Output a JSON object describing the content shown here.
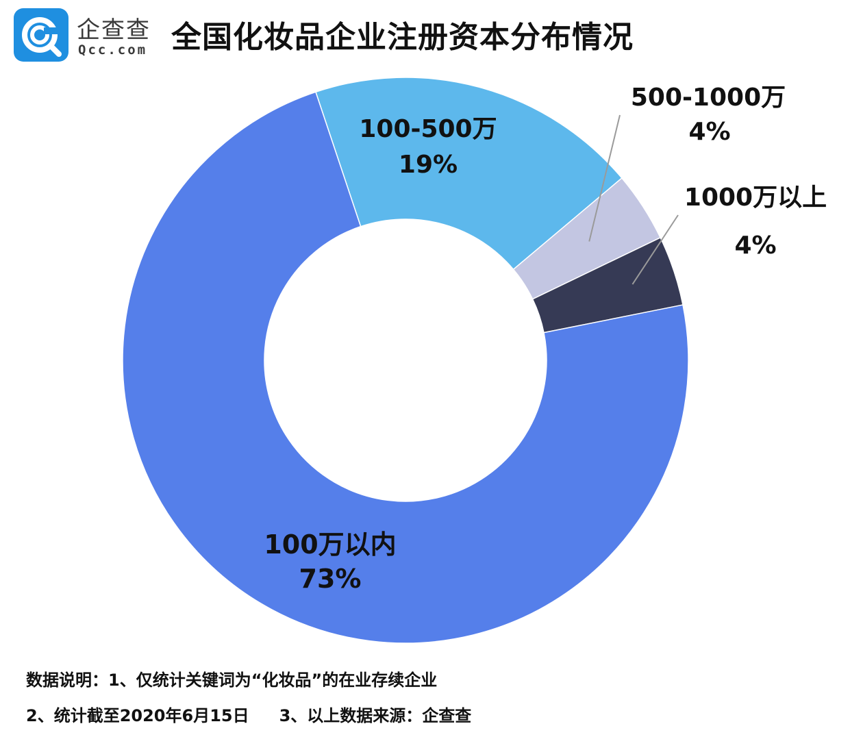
{
  "brand": {
    "name": "企查查",
    "domain": "Qcc.com",
    "color": "#1f8fe0"
  },
  "title": "全国化妆品企业注册资本分布情况",
  "chart_data": {
    "type": "pie",
    "donut": true,
    "title": "全国化妆品企业注册资本分布情况",
    "series": [
      {
        "label": "100万以内",
        "value": 73,
        "pct_text": "73%",
        "color": "#557fea"
      },
      {
        "label": "100-500万",
        "value": 19,
        "pct_text": "19%",
        "color": "#5db8ec"
      },
      {
        "label": "500-1000万",
        "value": 4,
        "pct_text": "4%",
        "color": "#c3c6e2"
      },
      {
        "label": "1000万以上",
        "value": 4,
        "pct_text": "4%",
        "color": "#363a55"
      }
    ]
  },
  "footnotes": {
    "line1": "数据说明：1、仅统计关键词为“化妆品”的在业存续企业",
    "line2_a": "2、统计截至2020年6月15日",
    "line2_b": "3、以上数据来源：企查查"
  }
}
